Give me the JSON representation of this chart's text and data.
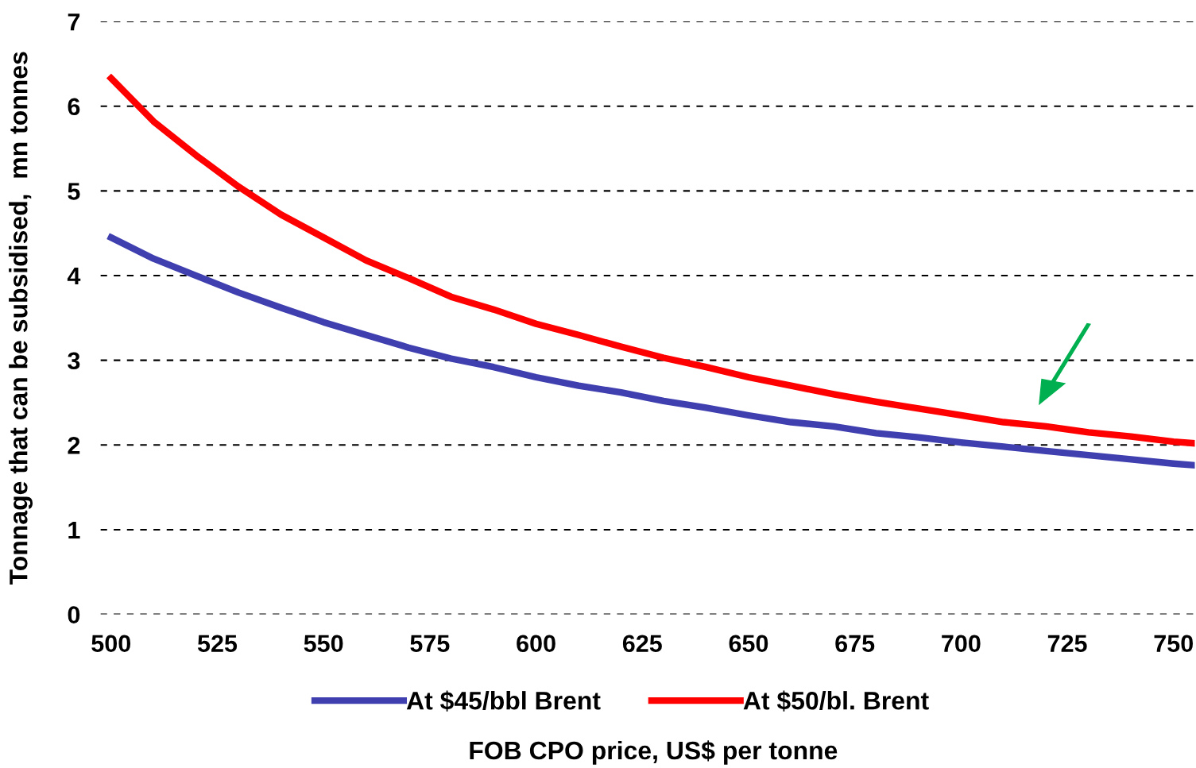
{
  "chart_data": {
    "type": "line",
    "xlabel": "FOB CPO price, US$ per tonne",
    "ylabel": "Tonnage that can be subsidised,  mn tonnes",
    "x": [
      500,
      510,
      520,
      530,
      540,
      550,
      560,
      570,
      580,
      590,
      600,
      610,
      620,
      630,
      640,
      650,
      660,
      670,
      680,
      690,
      700,
      710,
      720,
      730,
      740,
      750,
      755
    ],
    "series": [
      {
        "name": "At $45/bbl Brent",
        "color": "#3f3fb0",
        "values": [
          4.45,
          4.2,
          4.0,
          3.8,
          3.62,
          3.45,
          3.3,
          3.15,
          3.02,
          2.92,
          2.8,
          2.7,
          2.62,
          2.52,
          2.44,
          2.35,
          2.27,
          2.22,
          2.14,
          2.09,
          2.03,
          1.98,
          1.93,
          1.88,
          1.83,
          1.78,
          1.76
        ]
      },
      {
        "name": "At $50/bl. Brent",
        "color": "#ff0000",
        "values": [
          6.33,
          5.82,
          5.42,
          5.05,
          4.72,
          4.45,
          4.18,
          3.97,
          3.75,
          3.6,
          3.43,
          3.3,
          3.16,
          3.03,
          2.92,
          2.8,
          2.7,
          2.6,
          2.51,
          2.43,
          2.35,
          2.27,
          2.22,
          2.15,
          2.1,
          2.04,
          2.02
        ]
      }
    ],
    "xlim": [
      497.5,
      755
    ],
    "ylim": [
      0,
      7
    ],
    "xticks": [
      500,
      525,
      550,
      575,
      600,
      625,
      650,
      675,
      700,
      725,
      750
    ],
    "yticks": [
      0,
      1,
      2,
      3,
      4,
      5,
      6,
      7
    ],
    "grid": "y",
    "legend": "bottom",
    "line_style": "solid",
    "marker": "none"
  }
}
